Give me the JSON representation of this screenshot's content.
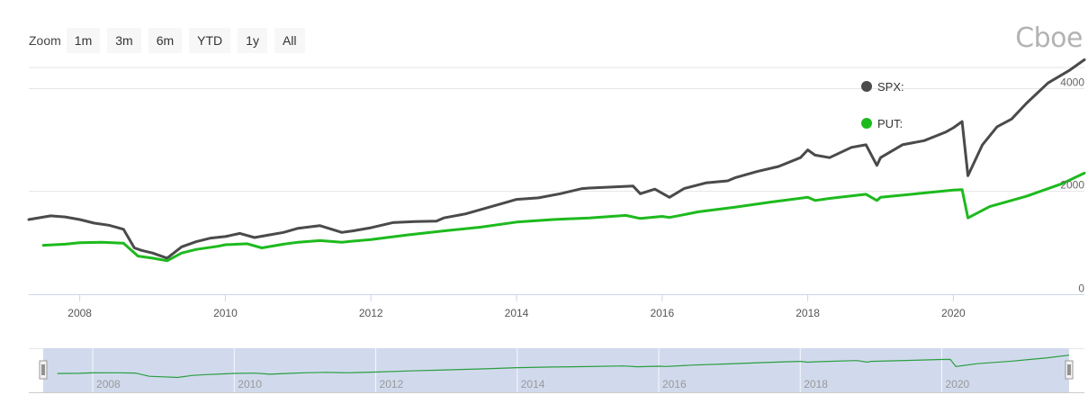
{
  "zoom": {
    "label": "Zoom",
    "buttons": [
      "1m",
      "3m",
      "6m",
      "YTD",
      "1y",
      "All"
    ]
  },
  "logo": {
    "text": "Cboe"
  },
  "colors": {
    "spx": "#4a4a4a",
    "put": "#1dba1d",
    "grid": "#e6e6e6",
    "navigator_fill": "#ccd6eb",
    "navigator_line": "#2a9d3f"
  },
  "chart_data": {
    "type": "line",
    "title": "",
    "xlabel": "",
    "ylabel": "",
    "xlim": [
      2007.3,
      2021.8
    ],
    "ylim": [
      0,
      4400
    ],
    "x_ticks": [
      "2008",
      "2010",
      "2012",
      "2014",
      "2016",
      "2018",
      "2020"
    ],
    "y_ticks": [
      "0",
      "2000",
      "4000"
    ],
    "legend_position": "top-right",
    "grid": true,
    "series": [
      {
        "name": "SPX:",
        "color": "#4a4a4a",
        "x": [
          2007.3,
          2007.6,
          2007.8,
          2008.0,
          2008.2,
          2008.4,
          2008.6,
          2008.75,
          2008.85,
          2009.0,
          2009.2,
          2009.4,
          2009.6,
          2009.8,
          2010.0,
          2010.2,
          2010.4,
          2010.6,
          2010.8,
          2011.0,
          2011.3,
          2011.6,
          2011.75,
          2012.0,
          2012.3,
          2012.6,
          2012.9,
          2013.0,
          2013.3,
          2013.6,
          2013.9,
          2014.0,
          2014.3,
          2014.6,
          2014.9,
          2015.0,
          2015.3,
          2015.6,
          2015.7,
          2015.9,
          2016.1,
          2016.3,
          2016.6,
          2016.9,
          2017.0,
          2017.3,
          2017.6,
          2017.9,
          2018.0,
          2018.1,
          2018.3,
          2018.6,
          2018.8,
          2018.95,
          2019.0,
          2019.3,
          2019.6,
          2019.9,
          2020.0,
          2020.12,
          2020.2,
          2020.4,
          2020.6,
          2020.8,
          2021.0,
          2021.3,
          2021.6,
          2021.8
        ],
        "values": [
          1450,
          1520,
          1500,
          1450,
          1380,
          1340,
          1260,
          900,
          850,
          800,
          700,
          920,
          1020,
          1090,
          1120,
          1180,
          1100,
          1150,
          1200,
          1280,
          1330,
          1200,
          1230,
          1290,
          1390,
          1410,
          1420,
          1480,
          1560,
          1680,
          1800,
          1840,
          1870,
          1950,
          2050,
          2060,
          2080,
          2100,
          1950,
          2040,
          1880,
          2050,
          2160,
          2200,
          2260,
          2380,
          2480,
          2650,
          2800,
          2700,
          2650,
          2850,
          2900,
          2500,
          2650,
          2900,
          2980,
          3150,
          3230,
          3350,
          2300,
          2900,
          3250,
          3400,
          3700,
          4100,
          4350,
          4550
        ]
      },
      {
        "name": "PUT:",
        "color": "#1dba1d",
        "x": [
          2007.5,
          2007.8,
          2008.0,
          2008.3,
          2008.6,
          2008.8,
          2009.0,
          2009.2,
          2009.4,
          2009.6,
          2009.9,
          2010.0,
          2010.3,
          2010.5,
          2010.8,
          2011.0,
          2011.3,
          2011.6,
          2011.75,
          2012.0,
          2012.5,
          2013.0,
          2013.5,
          2014.0,
          2014.5,
          2015.0,
          2015.5,
          2015.7,
          2016.0,
          2016.1,
          2016.5,
          2017.0,
          2017.5,
          2018.0,
          2018.1,
          2018.3,
          2018.8,
          2018.95,
          2019.0,
          2019.5,
          2020.0,
          2020.12,
          2020.2,
          2020.5,
          2021.0,
          2021.5,
          2021.8
        ],
        "values": [
          950,
          970,
          1000,
          1010,
          990,
          740,
          700,
          650,
          800,
          870,
          930,
          960,
          980,
          900,
          970,
          1010,
          1040,
          1010,
          1030,
          1060,
          1150,
          1230,
          1300,
          1400,
          1450,
          1480,
          1530,
          1470,
          1510,
          1490,
          1600,
          1690,
          1790,
          1880,
          1820,
          1860,
          1940,
          1820,
          1880,
          1950,
          2020,
          2030,
          1480,
          1700,
          1900,
          2150,
          2350
        ]
      }
    ]
  },
  "navigator": {
    "x_ticks": [
      "2008",
      "2010",
      "2012",
      "2014",
      "2016",
      "2018",
      "2020"
    ]
  }
}
